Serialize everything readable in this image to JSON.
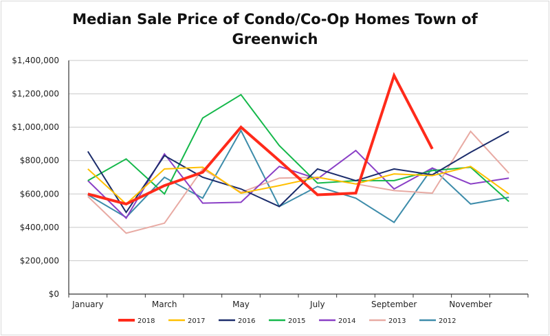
{
  "chart_data": {
    "type": "line",
    "title_line1": "Median Sale Price of Condo/Co-Op Homes Town of",
    "title_line2": "Greenwich",
    "categories": [
      "January",
      "February",
      "March",
      "April",
      "May",
      "June",
      "July",
      "August",
      "September",
      "October",
      "November",
      "December"
    ],
    "x_tick_labels": [
      "January",
      "",
      "March",
      "",
      "May",
      "",
      "July",
      "",
      "September",
      "",
      "November",
      ""
    ],
    "y_tick_labels": [
      "$0",
      "$200,000",
      "$400,000",
      "$600,000",
      "$800,000",
      "$1,000,000",
      "$1,200,000",
      "$1,400,000"
    ],
    "ylim": [
      0,
      1400000
    ],
    "grid": true,
    "legend_position": "bottom",
    "series": [
      {
        "name": "2018",
        "color": "#ff2a1a",
        "width": 4,
        "values": [
          600000,
          540000,
          650000,
          730000,
          1000000,
          800000,
          595000,
          605000,
          1310000,
          870000,
          null,
          null
        ]
      },
      {
        "name": "2017",
        "color": "#ffbf00",
        "width": 2,
        "values": [
          750000,
          540000,
          750000,
          760000,
          605000,
          650000,
          700000,
          660000,
          720000,
          710000,
          765000,
          600000
        ]
      },
      {
        "name": "2016",
        "color": "#1b2c6b",
        "width": 2,
        "values": [
          855000,
          490000,
          830000,
          700000,
          630000,
          525000,
          750000,
          680000,
          750000,
          715000,
          850000,
          975000
        ]
      },
      {
        "name": "2015",
        "color": "#14b84a",
        "width": 2,
        "values": [
          680000,
          810000,
          600000,
          1055000,
          1195000,
          890000,
          665000,
          680000,
          680000,
          740000,
          760000,
          555000
        ]
      },
      {
        "name": "2014",
        "color": "#8a3fc6",
        "width": 2,
        "values": [
          680000,
          455000,
          840000,
          545000,
          550000,
          765000,
          690000,
          860000,
          630000,
          755000,
          660000,
          695000
        ]
      },
      {
        "name": "2013",
        "color": "#e8aaa3",
        "width": 2,
        "values": [
          585000,
          365000,
          425000,
          750000,
          610000,
          695000,
          700000,
          660000,
          620000,
          605000,
          975000,
          725000
        ]
      },
      {
        "name": "2012",
        "color": "#3d8caa",
        "width": 2,
        "values": [
          595000,
          460000,
          700000,
          575000,
          980000,
          525000,
          645000,
          575000,
          430000,
          755000,
          540000,
          580000
        ]
      }
    ]
  }
}
